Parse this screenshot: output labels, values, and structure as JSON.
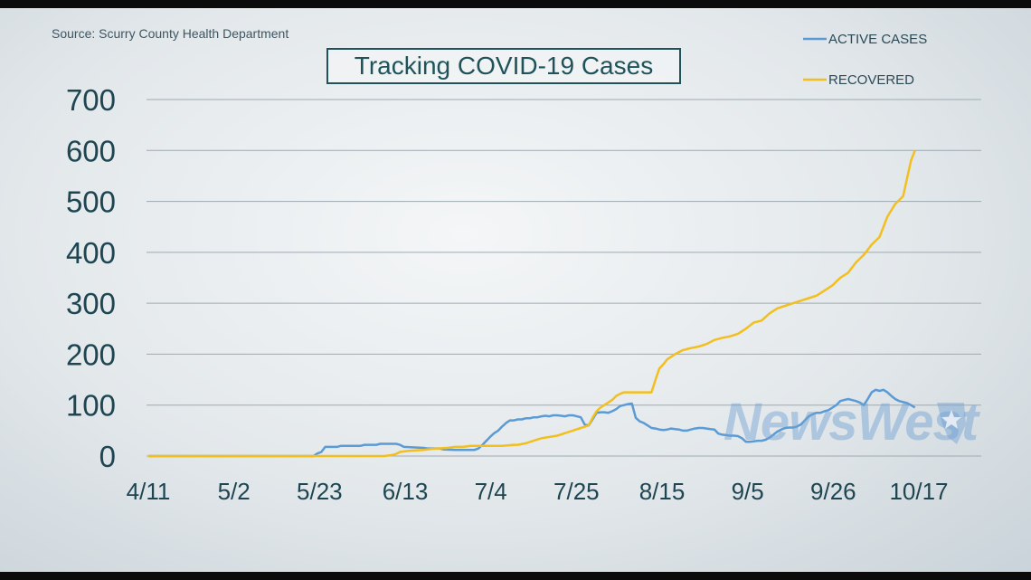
{
  "source_text": "Source: Scurry County Health Department",
  "title": "Tracking COVID-19 Cases",
  "watermark": "NewsWest",
  "colors": {
    "active": "#5b9bd5",
    "recovered": "#f2bf1e",
    "axis_text": "#1e4652",
    "title": "#1f5359"
  },
  "chart_data": {
    "type": "line",
    "title": "Tracking COVID-19 Cases",
    "xlabel": "",
    "ylabel": "",
    "x_ticks": [
      "4/11",
      "5/2",
      "5/23",
      "6/13",
      "7/4",
      "7/25",
      "8/15",
      "9/5",
      "9/26",
      "10/17"
    ],
    "x_range": [
      0,
      196
    ],
    "ylim": [
      0,
      700
    ],
    "y_ticks": [
      0,
      100,
      200,
      300,
      400,
      500,
      600,
      700
    ],
    "grid": true,
    "legend_position": "top-right",
    "series": [
      {
        "name": "ACTIVE CASES",
        "color": "#5b9bd5",
        "x": [
          0,
          42,
          43,
          44,
          45,
          48,
          49,
          54,
          55,
          58,
          59,
          63,
          64,
          65,
          70,
          71,
          74,
          75,
          78,
          83,
          84,
          85,
          86,
          87,
          88,
          89,
          90,
          91,
          92,
          93,
          94,
          95,
          96,
          97,
          98,
          99,
          100,
          101,
          102,
          103,
          104,
          105,
          106,
          107,
          108,
          109,
          110,
          111,
          112,
          113,
          114,
          115,
          116,
          117,
          118,
          119,
          120,
          121,
          122,
          123,
          124,
          125,
          126,
          127,
          128,
          129,
          130,
          131,
          132,
          133,
          134,
          135,
          136,
          137,
          138,
          139,
          140,
          141,
          142,
          143,
          144,
          145,
          146,
          147,
          148,
          149,
          150,
          151,
          152,
          153,
          154,
          155,
          156,
          157,
          158,
          159,
          160,
          161,
          162,
          163,
          164,
          165,
          166,
          167,
          168,
          169,
          170,
          171,
          172,
          173,
          174,
          175,
          176,
          177,
          178,
          179,
          180,
          181,
          182,
          183,
          184,
          185,
          186,
          187,
          188,
          189,
          190,
          191,
          192,
          193,
          194,
          195
        ],
        "y": [
          0,
          0,
          5,
          8,
          18,
          18,
          20,
          20,
          22,
          22,
          24,
          24,
          22,
          18,
          16,
          15,
          15,
          13,
          12,
          12,
          15,
          22,
          30,
          38,
          45,
          50,
          58,
          65,
          70,
          70,
          72,
          72,
          74,
          74,
          76,
          76,
          78,
          79,
          78,
          80,
          80,
          79,
          78,
          80,
          80,
          78,
          76,
          62,
          60,
          72,
          85,
          86,
          86,
          85,
          88,
          92,
          98,
          100,
          102,
          103,
          75,
          68,
          65,
          60,
          55,
          54,
          52,
          51,
          52,
          54,
          53,
          52,
          50,
          50,
          52,
          54,
          55,
          55,
          54,
          53,
          52,
          44,
          42,
          41,
          40,
          40,
          39,
          35,
          28,
          28,
          29,
          30,
          30,
          32,
          36,
          42,
          48,
          52,
          55,
          56,
          56,
          58,
          62,
          70,
          78,
          82,
          85,
          85,
          88,
          90,
          95,
          100,
          108,
          110,
          112,
          110,
          108,
          105,
          100,
          112,
          125,
          130,
          128,
          130,
          125,
          118,
          112,
          108,
          106,
          104,
          100,
          95
        ]
      },
      {
        "name": "RECOVERED",
        "color": "#f2bf1e",
        "x": [
          0,
          60,
          62,
          63,
          64,
          66,
          70,
          72,
          76,
          78,
          80,
          82,
          86,
          90,
          93,
          94,
          96,
          98,
          100,
          104,
          106,
          110,
          112,
          113,
          114,
          115,
          116,
          118,
          119,
          120,
          121,
          122,
          124,
          126,
          128,
          129,
          130,
          131,
          132,
          134,
          136,
          138,
          140,
          142,
          144,
          146,
          148,
          150,
          152,
          154,
          156,
          158,
          160,
          162,
          164,
          166,
          168,
          170,
          172,
          174,
          176,
          178,
          180,
          182,
          184,
          186,
          188,
          190,
          192,
          194,
          195
        ],
        "y": [
          0,
          0,
          2,
          4,
          8,
          10,
          12,
          14,
          16,
          18,
          18,
          20,
          20,
          20,
          22,
          22,
          25,
          30,
          35,
          40,
          45,
          55,
          60,
          75,
          88,
          95,
          100,
          110,
          118,
          122,
          125,
          125,
          125,
          125,
          125,
          150,
          172,
          180,
          190,
          200,
          208,
          212,
          215,
          220,
          228,
          232,
          235,
          240,
          250,
          262,
          266,
          280,
          290,
          295,
          300,
          305,
          310,
          315,
          325,
          335,
          350,
          360,
          380,
          395,
          415,
          430,
          470,
          495,
          510,
          580,
          600
        ]
      }
    ]
  }
}
